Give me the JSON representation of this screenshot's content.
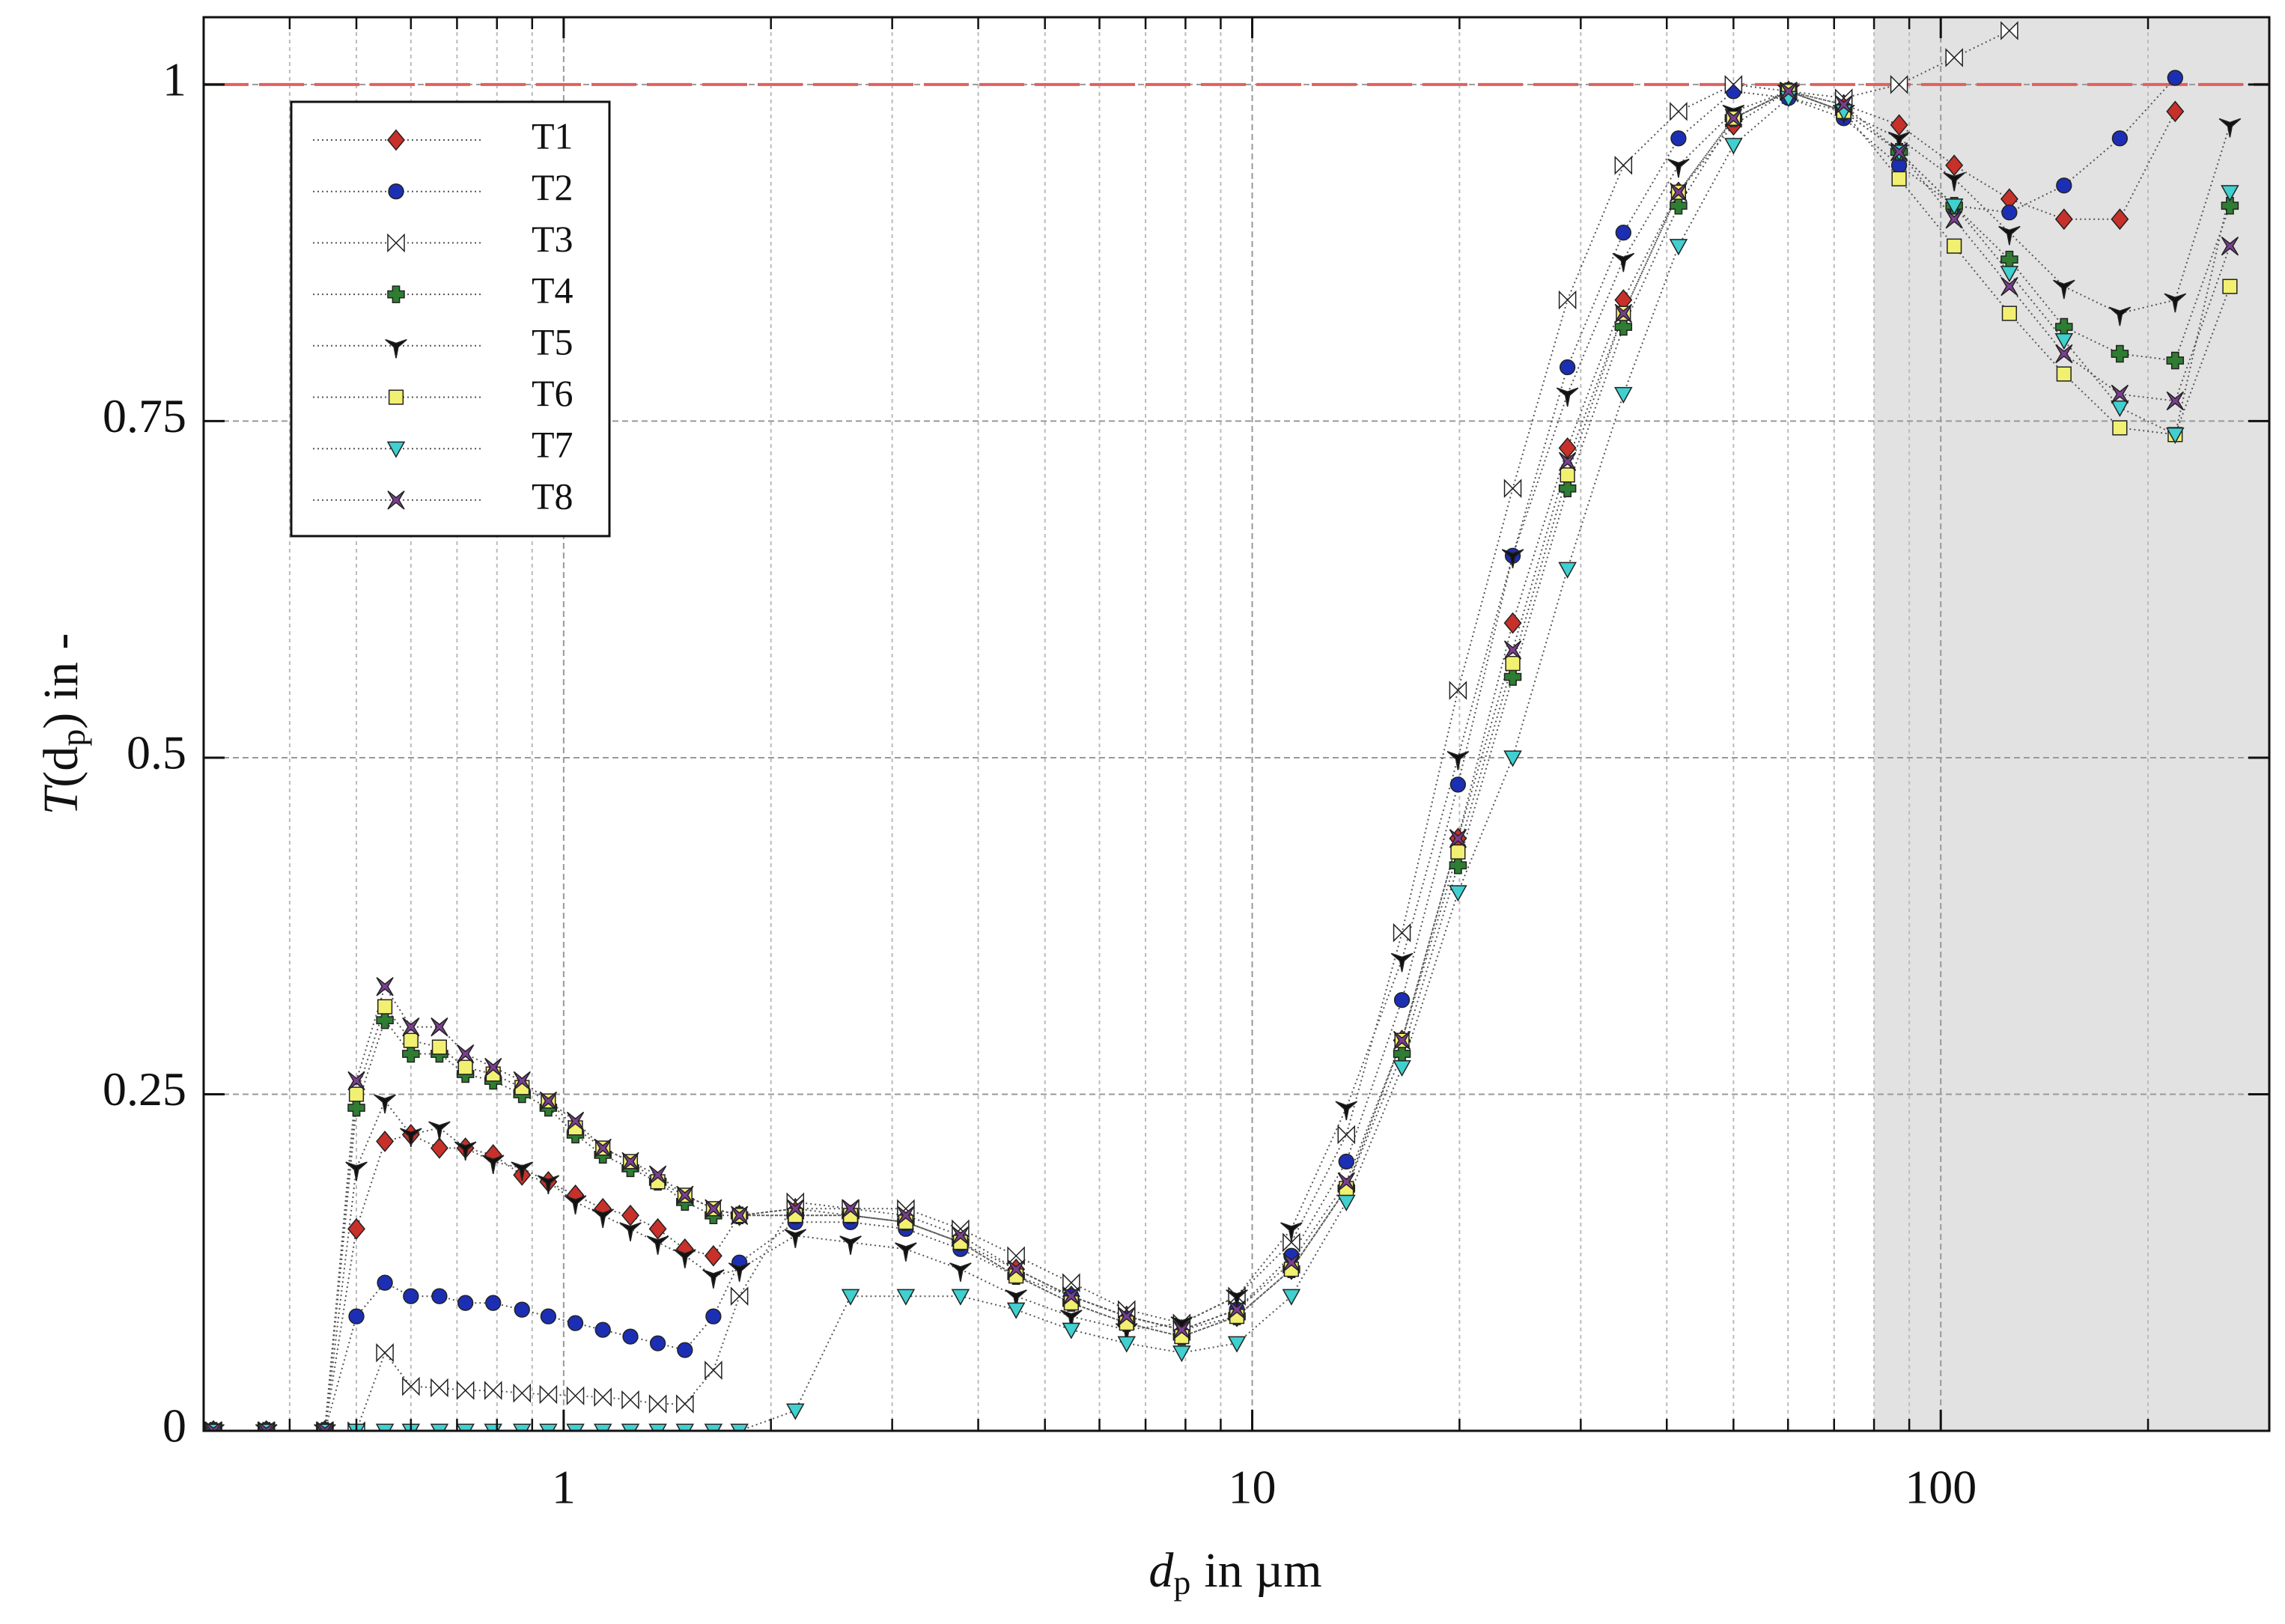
{
  "chart_data": {
    "type": "scatter",
    "x_label": [
      "d",
      "p",
      "in µm"
    ],
    "y_label": [
      "T",
      "(d",
      "p",
      ") in -"
    ],
    "x_scale": "log",
    "xlim": [
      0.3,
      300
    ],
    "ylim": [
      0,
      1.05
    ],
    "xticks": [
      1,
      10,
      100
    ],
    "xminorticks": [
      0.4,
      0.5,
      0.6,
      0.7,
      0.8,
      0.9,
      2,
      3,
      4,
      5,
      6,
      7,
      8,
      9,
      20,
      30,
      40,
      50,
      60,
      70,
      80,
      90,
      200,
      300
    ],
    "yticks": [
      0,
      0.25,
      0.5,
      0.75,
      1
    ],
    "grid": true,
    "legend": "upper left",
    "reference_line": {
      "y": 1,
      "color": "#e06060"
    },
    "shaded_xrange": {
      "range": [
        80,
        300
      ],
      "color": "#e2e2e2"
    },
    "x": [
      0.31,
      0.37,
      0.45,
      0.5,
      0.55,
      0.6,
      0.66,
      0.72,
      0.79,
      0.87,
      0.95,
      1.04,
      1.14,
      1.25,
      1.37,
      1.5,
      1.65,
      1.8,
      2.17,
      2.61,
      3.14,
      3.77,
      4.54,
      5.46,
      6.57,
      7.9,
      9.5,
      11.4,
      13.7,
      16.5,
      19.9,
      23.9,
      28.7,
      34.6,
      41.6,
      50,
      60.1,
      72.3,
      87,
      104.6,
      125.8,
      151,
      182,
      219,
      263
    ],
    "series": [
      {
        "name": "T1",
        "color": "#c8302a",
        "marker": "diamond",
        "values": [
          0,
          0,
          0,
          0.15,
          0.215,
          0.22,
          0.21,
          0.21,
          0.205,
          0.19,
          0.185,
          0.175,
          0.165,
          0.16,
          0.15,
          0.135,
          0.13,
          0.16,
          0.165,
          0.16,
          0.155,
          0.14,
          0.12,
          0.1,
          0.085,
          0.075,
          0.085,
          0.12,
          0.18,
          0.29,
          0.44,
          0.6,
          0.73,
          0.84,
          0.92,
          0.97,
          0.995,
          0.985,
          0.97,
          0.94,
          0.915,
          0.9,
          0.9,
          0.98,
          null
        ]
      },
      {
        "name": "T2",
        "color": "#1c2fb4",
        "marker": "circle",
        "values": [
          0,
          0,
          0,
          0.085,
          0.11,
          0.1,
          0.1,
          0.095,
          0.095,
          0.09,
          0.085,
          0.08,
          0.075,
          0.07,
          0.065,
          0.06,
          0.085,
          0.125,
          0.155,
          0.155,
          0.15,
          0.135,
          0.115,
          0.1,
          0.085,
          0.075,
          0.09,
          0.13,
          0.2,
          0.32,
          0.48,
          0.65,
          0.79,
          0.89,
          0.96,
          0.995,
          0.99,
          0.975,
          0.94,
          0.91,
          0.905,
          0.925,
          0.96,
          1.005,
          null
        ]
      },
      {
        "name": "T3",
        "color": "#ffffff",
        "marker": "bowtie",
        "values": [
          0,
          0,
          0,
          0,
          0.058,
          0.033,
          0.032,
          0.03,
          0.03,
          0.028,
          0.027,
          0.026,
          0.025,
          0.023,
          0.02,
          0.02,
          0.045,
          0.1,
          0.17,
          0.165,
          0.165,
          0.15,
          0.13,
          0.11,
          0.09,
          0.08,
          0.1,
          0.14,
          0.22,
          0.37,
          0.55,
          0.7,
          0.84,
          0.94,
          0.98,
          1.0,
          0.995,
          0.99,
          1.0,
          1.02,
          1.04,
          null,
          null,
          null,
          null
        ]
      },
      {
        "name": "T4",
        "color": "#2e7d32",
        "marker": "plus",
        "values": [
          0,
          0,
          0,
          0.24,
          0.305,
          0.28,
          0.28,
          0.265,
          0.26,
          0.25,
          0.24,
          0.22,
          0.205,
          0.195,
          0.185,
          0.17,
          0.16,
          0.16,
          0.16,
          0.16,
          0.155,
          0.14,
          0.115,
          0.095,
          0.08,
          0.07,
          0.085,
          0.12,
          0.18,
          0.28,
          0.42,
          0.56,
          0.7,
          0.82,
          0.91,
          0.975,
          0.995,
          0.98,
          0.95,
          0.91,
          0.87,
          0.82,
          0.8,
          0.795,
          0.91
        ]
      },
      {
        "name": "T5",
        "color": "#111111",
        "marker": "tristar",
        "values": [
          0,
          0,
          0,
          0.195,
          0.245,
          0.22,
          0.225,
          0.21,
          0.2,
          0.195,
          0.185,
          0.17,
          0.16,
          0.15,
          0.14,
          0.13,
          0.115,
          0.12,
          0.145,
          0.14,
          0.135,
          0.12,
          0.1,
          0.085,
          0.075,
          0.08,
          0.1,
          0.15,
          0.24,
          0.35,
          0.5,
          0.65,
          0.77,
          0.87,
          0.94,
          0.98,
          0.995,
          0.98,
          0.96,
          0.93,
          0.89,
          0.85,
          0.83,
          0.84,
          0.97
        ]
      },
      {
        "name": "T6",
        "color": "#f2f070",
        "marker": "square",
        "values": [
          0,
          0,
          0,
          0.25,
          0.315,
          0.29,
          0.285,
          0.27,
          0.265,
          0.255,
          0.245,
          0.225,
          0.21,
          0.2,
          0.185,
          0.175,
          0.165,
          0.16,
          0.16,
          0.16,
          0.155,
          0.14,
          0.115,
          0.095,
          0.08,
          0.07,
          0.085,
          0.12,
          0.18,
          0.29,
          0.43,
          0.57,
          0.71,
          0.83,
          0.92,
          0.975,
          0.995,
          0.98,
          0.93,
          0.88,
          0.83,
          0.785,
          0.745,
          0.74,
          0.85
        ]
      },
      {
        "name": "T7",
        "color": "#40d0d0",
        "marker": "triangle-down",
        "values": [
          0,
          0,
          0,
          0,
          0,
          0,
          0,
          0,
          0,
          0,
          0,
          0,
          0,
          0,
          0,
          0,
          0,
          0,
          0.015,
          0.1,
          0.1,
          0.1,
          0.09,
          0.075,
          0.065,
          0.058,
          0.065,
          0.1,
          0.17,
          0.27,
          0.4,
          0.5,
          0.64,
          0.77,
          0.88,
          0.955,
          0.99,
          0.98,
          0.95,
          0.91,
          0.86,
          0.81,
          0.76,
          0.74,
          0.92
        ]
      },
      {
        "name": "T8",
        "color": "#7b3f8f",
        "marker": "star",
        "values": [
          0,
          0,
          0,
          0.26,
          0.33,
          0.3,
          0.3,
          0.28,
          0.27,
          0.26,
          0.245,
          0.23,
          0.21,
          0.2,
          0.19,
          0.175,
          0.165,
          0.16,
          0.165,
          0.165,
          0.16,
          0.145,
          0.12,
          0.1,
          0.085,
          0.075,
          0.09,
          0.125,
          0.185,
          0.29,
          0.44,
          0.58,
          0.72,
          0.83,
          0.92,
          0.975,
          0.995,
          0.985,
          0.95,
          0.9,
          0.85,
          0.8,
          0.77,
          0.765,
          0.88
        ]
      }
    ]
  }
}
